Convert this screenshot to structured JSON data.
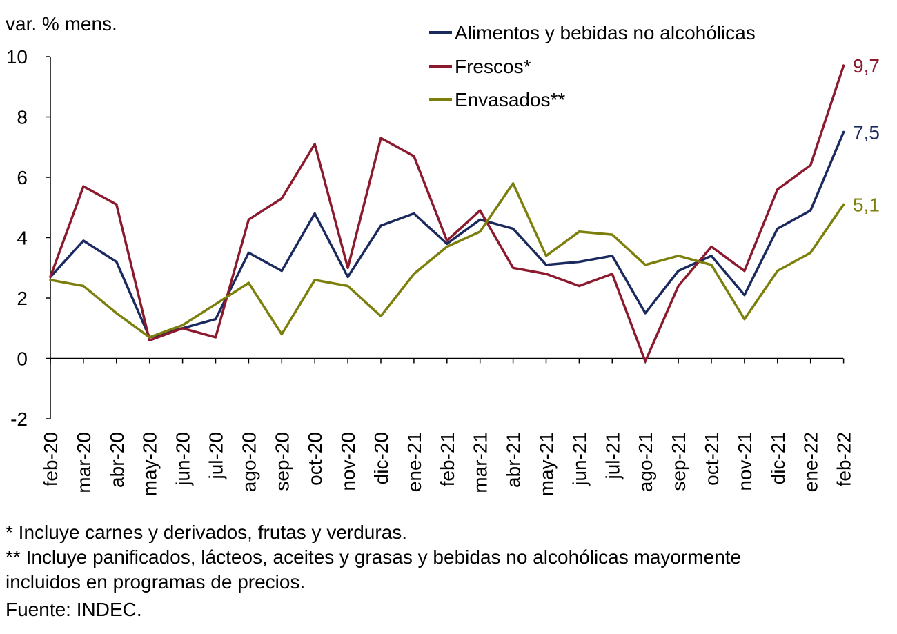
{
  "chart_data": {
    "type": "line",
    "ylabel": "var. % mens.",
    "ylim": [
      -2,
      10
    ],
    "yticks": [
      -2,
      0,
      2,
      4,
      6,
      8,
      10
    ],
    "categories": [
      "feb-20",
      "mar-20",
      "abr-20",
      "may-20",
      "jun-20",
      "jul-20",
      "ago-20",
      "sep-20",
      "oct-20",
      "nov-20",
      "dic-20",
      "ene-21",
      "feb-21",
      "mar-21",
      "abr-21",
      "may-21",
      "jun-21",
      "jul-21",
      "ago-21",
      "sep-21",
      "oct-21",
      "nov-21",
      "dic-21",
      "ene-22",
      "feb-22"
    ],
    "series": [
      {
        "name": "Alimentos y bebidas no alcohólicas",
        "color": "#1b2a5e",
        "values": [
          2.7,
          3.9,
          3.2,
          0.7,
          1.0,
          1.3,
          3.5,
          2.9,
          4.8,
          2.7,
          4.4,
          4.8,
          3.8,
          4.6,
          4.3,
          3.1,
          3.2,
          3.4,
          1.5,
          2.9,
          3.4,
          2.1,
          4.3,
          4.9,
          7.5
        ],
        "end_label": "7,5"
      },
      {
        "name": "Frescos*",
        "color": "#8b1a2e",
        "values": [
          2.7,
          5.7,
          5.1,
          0.6,
          1.0,
          0.7,
          4.6,
          5.3,
          7.1,
          3.0,
          7.3,
          6.7,
          3.9,
          4.9,
          3.0,
          2.8,
          2.4,
          2.8,
          -0.1,
          2.4,
          3.7,
          2.9,
          5.6,
          6.4,
          9.7
        ],
        "end_label": "9,7"
      },
      {
        "name": "Envasados**",
        "color": "#7c7f0b",
        "values": [
          2.6,
          2.4,
          1.5,
          0.7,
          1.1,
          1.8,
          2.5,
          0.8,
          2.6,
          2.4,
          1.4,
          2.8,
          3.7,
          4.2,
          5.8,
          3.4,
          4.2,
          4.1,
          3.1,
          3.4,
          3.1,
          1.3,
          2.9,
          3.5,
          5.1
        ],
        "end_label": "5,1"
      }
    ],
    "legend_position": "top-right",
    "grid": false
  },
  "footnotes": {
    "line1": "* Incluye carnes y derivados, frutas y verduras.",
    "line2": "** Incluye panificados, lácteos, aceites y grasas y bebidas no alcohólicas mayormente",
    "line3": "incluidos en programas de precios.",
    "source": "Fuente: INDEC."
  }
}
